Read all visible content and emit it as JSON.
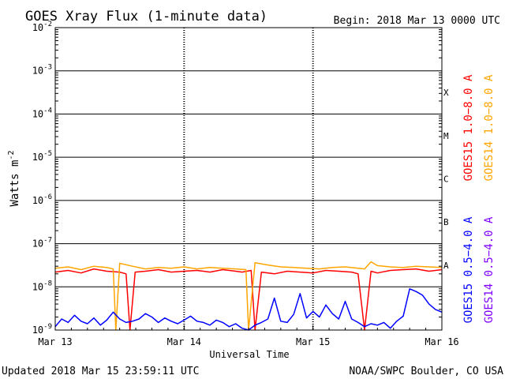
{
  "chart_data": {
    "type": "line",
    "title": "GOES Xray Flux (1-minute data)",
    "begin_label": "Begin:  2018 Mar 13 0000 UTC",
    "xlabel": "Universal Time",
    "ylabel": "Watts m",
    "ylabel_exponent": "-2",
    "y_scale": "log",
    "ylim": [
      1e-09,
      0.01
    ],
    "y_ticks": [
      {
        "base": "10",
        "exp": "-2"
      },
      {
        "base": "10",
        "exp": "-3"
      },
      {
        "base": "10",
        "exp": "-4"
      },
      {
        "base": "10",
        "exp": "-5"
      },
      {
        "base": "10",
        "exp": "-6"
      },
      {
        "base": "10",
        "exp": "-7"
      },
      {
        "base": "10",
        "exp": "-8"
      },
      {
        "base": "10",
        "exp": "-9"
      }
    ],
    "x_ticks": [
      "Mar 13",
      "Mar 14",
      "Mar 15",
      "Mar 16"
    ],
    "x_range_days": [
      0,
      3
    ],
    "flare_classes": [
      "X",
      "M",
      "C",
      "B",
      "A"
    ],
    "grid": true,
    "legend_placement": "right",
    "legend": [
      {
        "label": "GOES15 1.0−8.0 A",
        "color": "#ff0000"
      },
      {
        "label": "GOES14 1.0−8.0 A",
        "color": "#ffa500"
      },
      {
        "label": "GOES15 0.5−4.0 A",
        "color": "#0000ff"
      },
      {
        "label": "GOES14 0.5−4.0 A",
        "color": "#8000ff"
      }
    ],
    "series": [
      {
        "name": "GOES15 1.0−8.0 A",
        "color": "#ff0000",
        "x_days": [
          0.0,
          0.1,
          0.2,
          0.3,
          0.4,
          0.5,
          0.55,
          0.58,
          0.62,
          0.7,
          0.8,
          0.9,
          1.0,
          1.1,
          1.2,
          1.3,
          1.4,
          1.45,
          1.52,
          1.55,
          1.6,
          1.7,
          1.8,
          1.9,
          2.0,
          2.1,
          2.2,
          2.3,
          2.35,
          2.4,
          2.45,
          2.5,
          2.6,
          2.7,
          2.8,
          2.9,
          3.0
        ],
        "y": [
          2.2e-08,
          2.4e-08,
          2.1e-08,
          2.6e-08,
          2.3e-08,
          2.2e-08,
          2e-08,
          1e-09,
          2.2e-08,
          2.3e-08,
          2.5e-08,
          2.2e-08,
          2.3e-08,
          2.4e-08,
          2.2e-08,
          2.5e-08,
          2.3e-08,
          2.2e-08,
          2.4e-08,
          1e-09,
          2.2e-08,
          2e-08,
          2.3e-08,
          2.2e-08,
          2.1e-08,
          2.4e-08,
          2.3e-08,
          2.2e-08,
          2e-08,
          1e-09,
          2.3e-08,
          2.1e-08,
          2.4e-08,
          2.5e-08,
          2.6e-08,
          2.3e-08,
          2.5e-08
        ]
      },
      {
        "name": "GOES14 1.0−8.0 A",
        "color": "#ffa500",
        "x_days": [
          0.0,
          0.1,
          0.2,
          0.3,
          0.4,
          0.45,
          0.47,
          0.5,
          0.6,
          0.7,
          0.8,
          0.9,
          1.0,
          1.1,
          1.2,
          1.3,
          1.4,
          1.48,
          1.5,
          1.55,
          1.65,
          1.75,
          1.85,
          1.95,
          2.05,
          2.15,
          2.25,
          2.35,
          2.4,
          2.45,
          2.5,
          2.6,
          2.7,
          2.8,
          2.9,
          3.0
        ],
        "y": [
          2.7e-08,
          2.9e-08,
          2.5e-08,
          3e-08,
          2.8e-08,
          2.6e-08,
          1e-09,
          3.5e-08,
          3e-08,
          2.6e-08,
          2.8e-08,
          2.7e-08,
          2.9e-08,
          2.6e-08,
          2.8e-08,
          2.7e-08,
          2.6e-08,
          2.5e-08,
          1e-09,
          3.6e-08,
          3.2e-08,
          2.9e-08,
          2.8e-08,
          2.7e-08,
          2.6e-08,
          2.8e-08,
          2.9e-08,
          2.7e-08,
          2.6e-08,
          3.8e-08,
          3.1e-08,
          2.9e-08,
          2.8e-08,
          3e-08,
          2.9e-08,
          2.8e-08
        ]
      },
      {
        "name": "GOES15 0.5−4.0 A",
        "color": "#0000ff",
        "x_days": [
          0.0,
          0.05,
          0.1,
          0.15,
          0.2,
          0.25,
          0.3,
          0.35,
          0.4,
          0.45,
          0.5,
          0.55,
          0.6,
          0.65,
          0.7,
          0.75,
          0.8,
          0.85,
          0.9,
          0.95,
          1.0,
          1.05,
          1.1,
          1.15,
          1.2,
          1.25,
          1.3,
          1.35,
          1.4,
          1.45,
          1.5,
          1.55,
          1.6,
          1.65,
          1.7,
          1.75,
          1.8,
          1.85,
          1.9,
          1.95,
          2.0,
          2.05,
          2.1,
          2.15,
          2.2,
          2.25,
          2.3,
          2.35,
          2.4,
          2.45,
          2.5,
          2.55,
          2.6,
          2.65,
          2.7,
          2.75,
          2.8,
          2.85,
          2.9,
          2.95,
          3.0
        ],
        "y": [
          1.2e-09,
          1.8e-09,
          1.5e-09,
          2.2e-09,
          1.6e-09,
          1.4e-09,
          1.9e-09,
          1.3e-09,
          1.7e-09,
          2.6e-09,
          1.8e-09,
          1.5e-09,
          1.6e-09,
          1.8e-09,
          2.4e-09,
          2e-09,
          1.5e-09,
          1.9e-09,
          1.6e-09,
          1.4e-09,
          1.7e-09,
          2.1e-09,
          1.6e-09,
          1.5e-09,
          1.3e-09,
          1.7e-09,
          1.5e-09,
          1.2e-09,
          1.4e-09,
          1.1e-09,
          1e-09,
          1.3e-09,
          1.5e-09,
          1.8e-09,
          5.5e-09,
          1.6e-09,
          1.5e-09,
          2.3e-09,
          7e-09,
          1.9e-09,
          2.7e-09,
          2e-09,
          3.8e-09,
          2.4e-09,
          1.8e-09,
          4.6e-09,
          1.8e-09,
          1.5e-09,
          1.2e-09,
          1.4e-09,
          1.3e-09,
          1.5e-09,
          1.1e-09,
          1.6e-09,
          2.1e-09,
          9e-09,
          7.8e-09,
          6.4e-09,
          4e-09,
          3e-09,
          2.6e-09
        ]
      }
    ]
  },
  "footer": {
    "updated": "Updated 2018 Mar 15 23:59:11 UTC",
    "credit": "NOAA/SWPC Boulder, CO USA"
  }
}
